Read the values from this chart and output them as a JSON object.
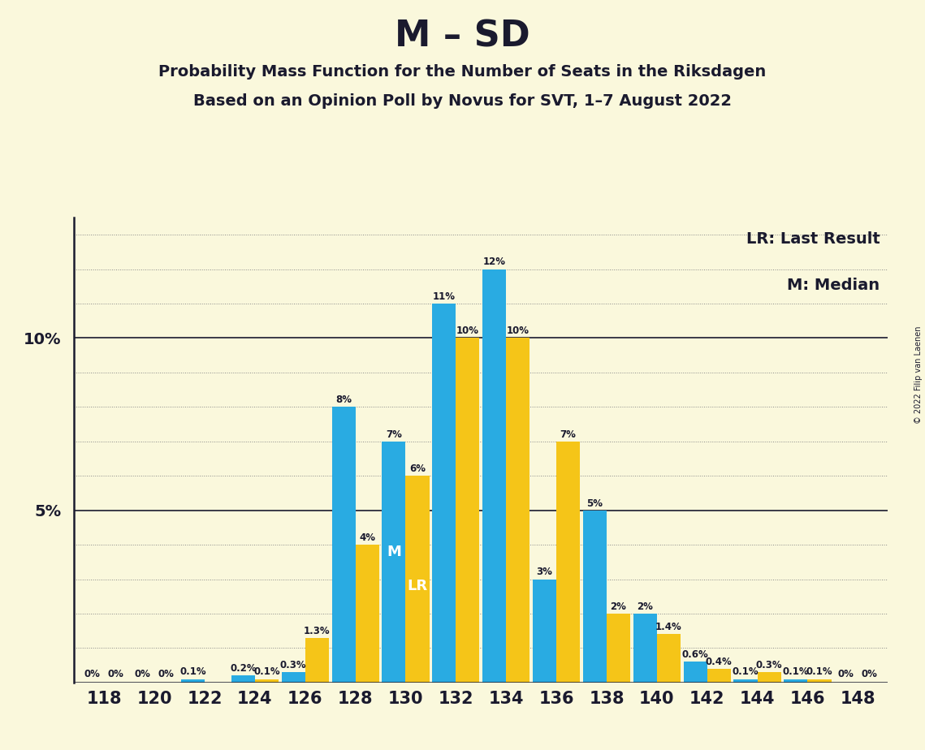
{
  "title": "M – SD",
  "subtitle1": "Probability Mass Function for the Number of Seats in the Riksdagen",
  "subtitle2": "Based on an Opinion Poll by Novus for SVT, 1–7 August 2022",
  "copyright": "© 2022 Filip van Laenen",
  "legend_lr": "LR: Last Result",
  "legend_m": "M: Median",
  "seats": [
    118,
    120,
    122,
    124,
    126,
    128,
    130,
    132,
    134,
    136,
    138,
    140,
    142,
    144,
    146,
    148
  ],
  "blue_values": [
    0.0,
    0.0,
    0.001,
    0.002,
    0.003,
    0.08,
    0.07,
    0.11,
    0.12,
    0.03,
    0.05,
    0.02,
    0.006,
    0.001,
    0.001,
    0.0
  ],
  "gold_values": [
    0.0,
    0.0,
    0.0,
    0.001,
    0.013,
    0.04,
    0.06,
    0.1,
    0.1,
    0.07,
    0.02,
    0.014,
    0.004,
    0.003,
    0.001,
    0.0
  ],
  "blue_labels": [
    "0%",
    "0%",
    "0.1%",
    "0.2%",
    "0.3%",
    "8%",
    "7%",
    "11%",
    "12%",
    "3%",
    "5%",
    "2%",
    "0.6%",
    "0.1%",
    "0.1%",
    "0%"
  ],
  "gold_labels": [
    "0%",
    "0%",
    "",
    "0.1%",
    "1.3%",
    "4%",
    "6%",
    "10%",
    "10%",
    "7%",
    "2%",
    "1.4%",
    "0.4%",
    "0.3%",
    "0.1%",
    "0%"
  ],
  "median_seat": 130,
  "lr_seat": 130,
  "blue_color": "#29ABE2",
  "gold_color": "#F5C518",
  "background_color": "#FAF8DC",
  "text_color": "#1A1A2E",
  "grid_color": "#888888",
  "ylabel_5": "5%",
  "ylabel_10": "10%"
}
